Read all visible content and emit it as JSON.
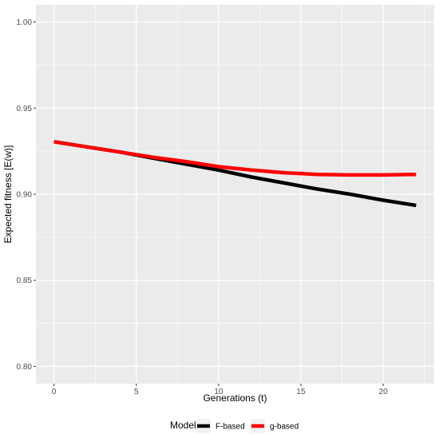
{
  "chart_data": {
    "type": "line",
    "xlabel": "Generations (t)",
    "ylabel": "Expected fitness [E(w)]",
    "xlim": [
      -1.1,
      23.1
    ],
    "ylim": [
      0.79,
      1.01
    ],
    "x_ticks": [
      0,
      5,
      10,
      15,
      20
    ],
    "x_tick_labels": [
      "0",
      "5",
      "10",
      "15",
      "20"
    ],
    "y_ticks": [
      0.8,
      0.85,
      0.9,
      0.95,
      1.0
    ],
    "y_tick_labels": [
      "0.80",
      "0.85",
      "0.90",
      "0.95",
      "1.00"
    ],
    "grid": true,
    "panel_background": "#ebebeb",
    "legend": {
      "title": "Model",
      "position": "bottom"
    },
    "x": [
      0,
      2,
      4,
      6,
      8,
      10,
      12,
      14,
      16,
      18,
      20,
      22
    ],
    "series": [
      {
        "name": "F-based",
        "color": "#000000",
        "values": [
          0.9305,
          0.9275,
          0.9245,
          0.921,
          0.9175,
          0.914,
          0.91,
          0.9065,
          0.903,
          0.9,
          0.8965,
          0.8935
        ]
      },
      {
        "name": "g-based",
        "color": "#ff0000",
        "values": [
          0.9305,
          0.9275,
          0.9245,
          0.9215,
          0.919,
          0.916,
          0.914,
          0.9125,
          0.9115,
          0.9112,
          0.9112,
          0.9115
        ]
      }
    ]
  }
}
